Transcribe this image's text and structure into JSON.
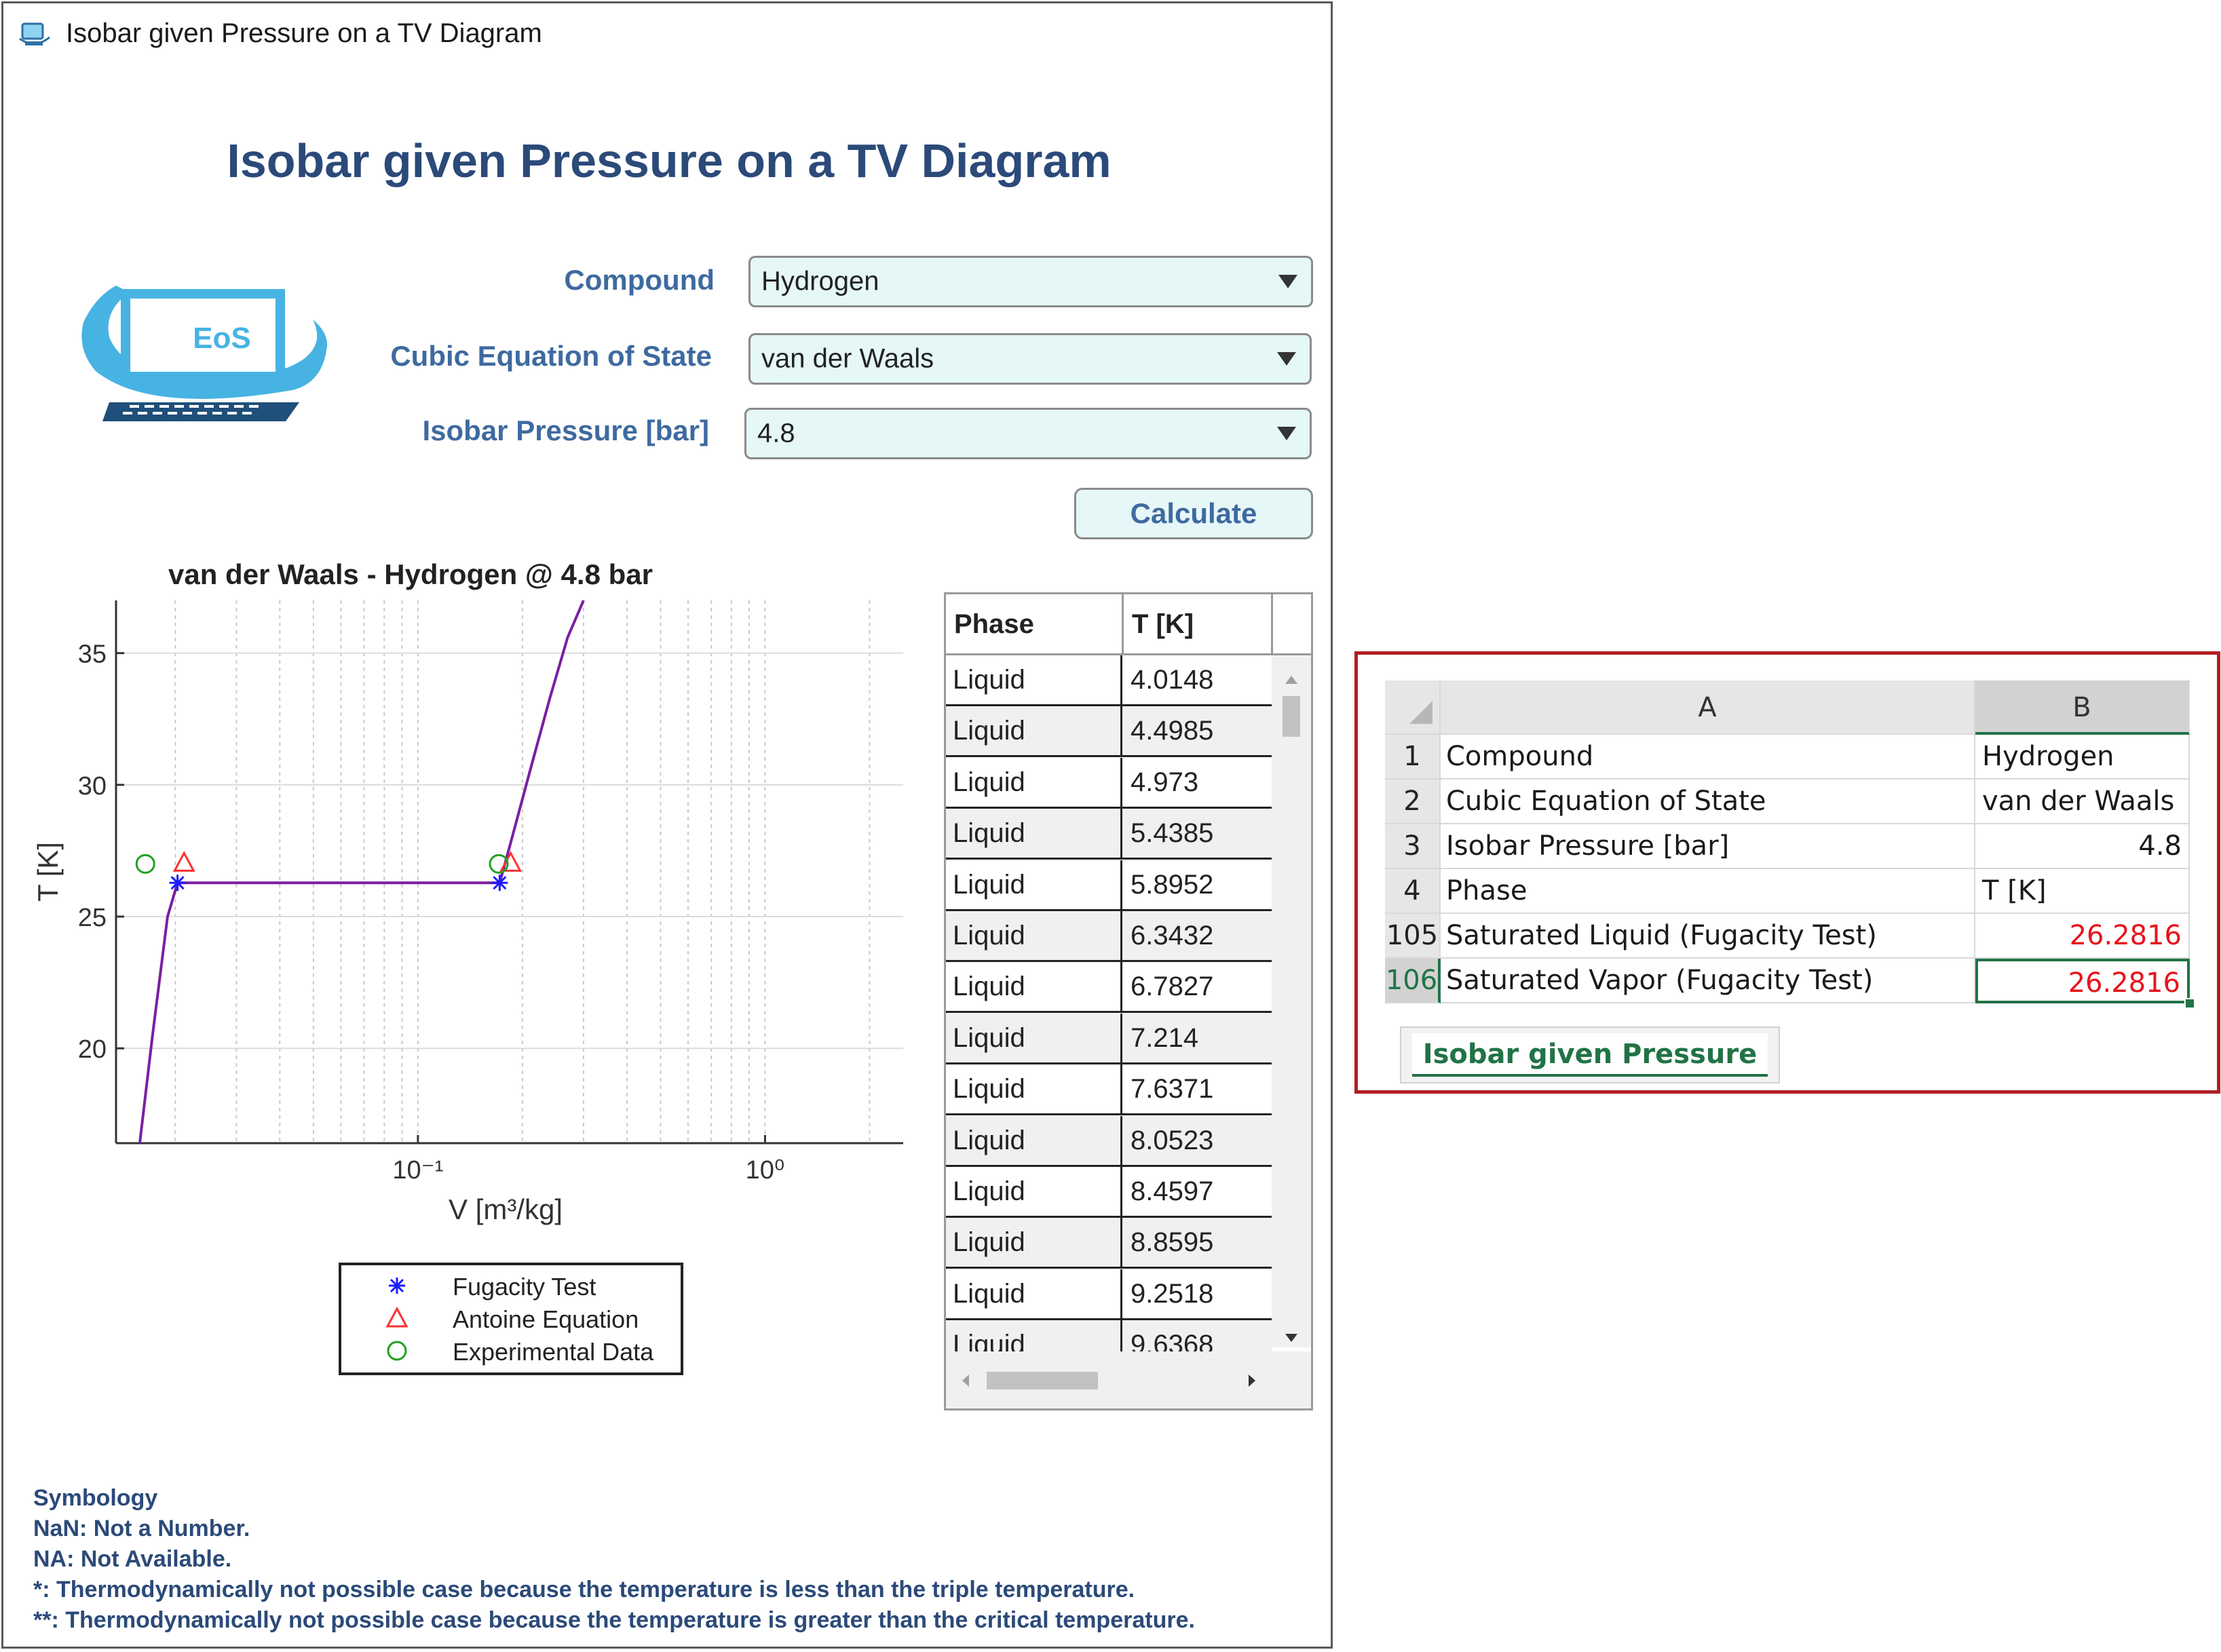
{
  "window": {
    "title": "Isobar given Pressure on a TV Diagram"
  },
  "app": {
    "heading": "Isobar given Pressure on a TV Diagram",
    "logo_text": "EoS",
    "fields": [
      {
        "label": "Compound",
        "value": "Hydrogen"
      },
      {
        "label": "Cubic Equation of State",
        "value": "van der Waals"
      },
      {
        "label": "Isobar Pressure [bar]",
        "value": "4.8"
      }
    ],
    "calculate_label": "Calculate"
  },
  "chart_data": {
    "type": "line",
    "title": "van der Waals - Hydrogen @ 4.8 bar",
    "xlabel": "V  [m³/kg]",
    "ylabel": "T [K]",
    "x_scale": "log",
    "xlim": [
      0.0135,
      2.5
    ],
    "ylim": [
      16.4,
      37
    ],
    "x_ticks": [
      {
        "value": 0.1,
        "label": "10⁻¹"
      },
      {
        "value": 1,
        "label": "10⁰"
      }
    ],
    "y_ticks": [
      20,
      25,
      30,
      35
    ],
    "grid": true,
    "series": [
      {
        "type": "line",
        "color": "#7a1fa2",
        "x": [
          0.0158,
          0.0172,
          0.019,
          0.0203,
          0.09,
          0.172,
          0.185,
          0.21,
          0.24,
          0.27,
          0.3
        ],
        "y": [
          16.4,
          20.5,
          25.0,
          26.28,
          26.28,
          26.28,
          27.8,
          30.5,
          33.3,
          35.6,
          37.0
        ]
      },
      {
        "name": "Fugacity Test",
        "type": "scatter",
        "marker": "asterisk",
        "color": "#1a1aff",
        "x": [
          0.0203,
          0.172
        ],
        "y": [
          26.2816,
          26.2816
        ]
      },
      {
        "name": "Antoine Equation",
        "type": "scatter",
        "marker": "triangle",
        "color": "#ff3030",
        "x": [
          0.0212,
          0.185
        ],
        "y": [
          27.05,
          27.05
        ]
      },
      {
        "name": "Experimental Data",
        "type": "scatter",
        "marker": "circle",
        "color": "#22a022",
        "x": [
          0.0164,
          0.171
        ],
        "y": [
          27.0,
          27.0
        ]
      }
    ],
    "legend": "below"
  },
  "table": {
    "headers": [
      "Phase",
      "T [K]"
    ],
    "rows": [
      [
        "Liquid",
        "4.0148"
      ],
      [
        "Liquid",
        "4.4985"
      ],
      [
        "Liquid",
        "4.973"
      ],
      [
        "Liquid",
        "5.4385"
      ],
      [
        "Liquid",
        "5.8952"
      ],
      [
        "Liquid",
        "6.3432"
      ],
      [
        "Liquid",
        "6.7827"
      ],
      [
        "Liquid",
        "7.214"
      ],
      [
        "Liquid",
        "7.6371"
      ],
      [
        "Liquid",
        "8.0523"
      ],
      [
        "Liquid",
        "8.4597"
      ],
      [
        "Liquid",
        "8.8595"
      ],
      [
        "Liquid",
        "9.2518"
      ],
      [
        "Liquid",
        "9.6368"
      ]
    ]
  },
  "symbology": [
    "Symbology",
    "NaN: Not a Number.",
    "NA: Not Available.",
    "*: Thermodynamically not possible case because the temperature is less than the triple temperature.",
    "**: Thermodynamically not possible case because the temperature is greater than the critical temperature."
  ],
  "sheet": {
    "col_headers": [
      "A",
      "B"
    ],
    "rows": [
      {
        "num": "1",
        "a": "Compound",
        "b": "Hydrogen",
        "b_align": "left"
      },
      {
        "num": "2",
        "a": "Cubic Equation of State",
        "b": "van der Waals",
        "b_align": "left"
      },
      {
        "num": "3",
        "a": "Isobar Pressure [bar]",
        "b": "4.8",
        "b_align": "right"
      },
      {
        "num": "4",
        "a": "Phase",
        "b": "T [K]",
        "b_align": "left"
      },
      {
        "num": "105",
        "a": "Saturated Liquid (Fugacity Test)",
        "b": "26.2816",
        "b_align": "right",
        "b_color": "#e8131b"
      },
      {
        "num": "106",
        "a": "Saturated Vapor (Fugacity Test)",
        "b": "26.2816",
        "b_align": "right",
        "b_color": "#e8131b"
      }
    ],
    "button_label": "Isobar given Pressure",
    "accent": "#217346"
  }
}
